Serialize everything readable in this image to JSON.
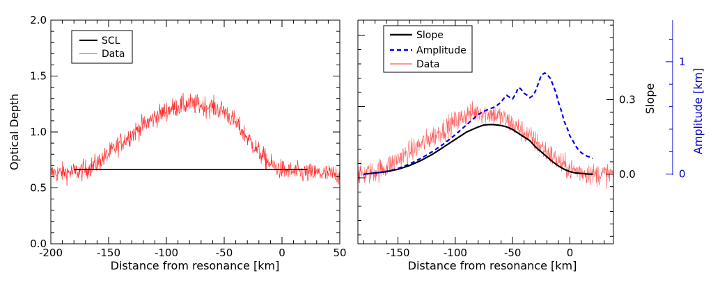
{
  "chart_data": [
    {
      "type": "line",
      "xlabel": "Distance from resonance [km]",
      "ylabel": "Optical Depth",
      "xlim": [
        -200,
        50
      ],
      "ylim": [
        0,
        2.0
      ],
      "xticks": [
        -200,
        -150,
        -100,
        -50,
        0,
        50
      ],
      "xtick_labels": [
        "-200",
        "-150",
        "-100",
        "-50",
        "0",
        "50"
      ],
      "yticks": [
        0,
        0.5,
        1.0,
        1.5,
        2.0
      ],
      "ytick_labels": [
        "0.0",
        "0.5",
        "1.0",
        "1.5",
        "2.0"
      ],
      "legend_position": "top-left",
      "series": [
        {
          "name": "SCL",
          "color": "#000000",
          "x": [
            -180,
            22
          ],
          "y": [
            0.665,
            0.665
          ]
        },
        {
          "name": "Data",
          "color": "#ff2a2a",
          "noisy": true,
          "noise_amplitude": 0.09,
          "x": [
            -200,
            -180,
            -170,
            -160,
            -150,
            -140,
            -130,
            -120,
            -110,
            -100,
            -90,
            -80,
            -70,
            -60,
            -50,
            -40,
            -30,
            -20,
            -10,
            0,
            10,
            20,
            30,
            40,
            50
          ],
          "y": [
            0.63,
            0.64,
            0.66,
            0.72,
            0.8,
            0.9,
            0.98,
            1.06,
            1.13,
            1.19,
            1.23,
            1.25,
            1.24,
            1.22,
            1.19,
            1.08,
            0.95,
            0.82,
            0.71,
            0.66,
            0.64,
            0.63,
            0.63,
            0.62,
            0.62
          ]
        }
      ]
    },
    {
      "type": "line",
      "xlabel": "Distance from resonance [km]",
      "ylabel": "Slope",
      "ylabel_right": "Amplitude [km]",
      "ylabel_right_color": "#0000cc",
      "xlim": [
        -185,
        38
      ],
      "xticks": [
        -150,
        -100,
        -50,
        0
      ],
      "xtick_labels": [
        "-150",
        "-100",
        "-50",
        "0"
      ],
      "slope_ylim": [
        -0.28,
        0.62
      ],
      "slope_ticks": [
        0.0,
        0.3
      ],
      "slope_tick_labels": [
        "0.0",
        "0.3"
      ],
      "amplitude_ylim": [
        -0.62,
        1.37
      ],
      "amplitude_ticks": [
        0,
        1
      ],
      "amplitude_tick_labels": [
        "0",
        "1"
      ],
      "legend_position": "top-left",
      "series": [
        {
          "name": "Slope",
          "color": "#000000",
          "axis": "slope",
          "x": [
            -180,
            -170,
            -160,
            -150,
            -140,
            -130,
            -120,
            -110,
            -100,
            -90,
            -80,
            -75,
            -70,
            -65,
            -60,
            -55,
            -50,
            -45,
            -40,
            -35,
            -30,
            -25,
            -20,
            -15,
            -10,
            -5,
            0,
            5,
            10,
            15,
            20
          ],
          "y": [
            0.0,
            0.005,
            0.01,
            0.02,
            0.035,
            0.055,
            0.08,
            0.11,
            0.14,
            0.17,
            0.19,
            0.198,
            0.2,
            0.199,
            0.196,
            0.19,
            0.18,
            0.165,
            0.15,
            0.135,
            0.11,
            0.09,
            0.07,
            0.05,
            0.033,
            0.02,
            0.01,
            0.005,
            0.003,
            0.001,
            0.0
          ]
        },
        {
          "name": "Amplitude",
          "color": "#0000dd",
          "axis": "amplitude",
          "x": [
            -180,
            -170,
            -160,
            -150,
            -140,
            -130,
            -120,
            -110,
            -100,
            -90,
            -80,
            -75,
            -70,
            -65,
            -60,
            -58,
            -55,
            -52,
            -50,
            -47,
            -45,
            -43,
            -40,
            -37,
            -35,
            -32,
            -30,
            -27,
            -25,
            -22,
            -20,
            -17,
            -15,
            -12,
            -10,
            -7,
            -5,
            -2,
            0,
            3,
            5,
            8,
            10,
            13,
            15,
            18,
            20
          ],
          "y": [
            0.0,
            0.01,
            0.025,
            0.05,
            0.09,
            0.14,
            0.2,
            0.27,
            0.35,
            0.44,
            0.53,
            0.56,
            0.58,
            0.6,
            0.64,
            0.67,
            0.7,
            0.68,
            0.67,
            0.72,
            0.77,
            0.76,
            0.72,
            0.7,
            0.68,
            0.7,
            0.74,
            0.82,
            0.88,
            0.9,
            0.89,
            0.85,
            0.8,
            0.72,
            0.64,
            0.55,
            0.47,
            0.4,
            0.34,
            0.29,
            0.25,
            0.21,
            0.19,
            0.17,
            0.16,
            0.15,
            0.14
          ]
        },
        {
          "name": "Data",
          "color": "#ff3030",
          "axis": "slope",
          "noisy": true,
          "noise_amplitude": 0.045,
          "x": [
            -185,
            -180,
            -170,
            -160,
            -150,
            -140,
            -130,
            -120,
            -110,
            -100,
            -90,
            -80,
            -70,
            -60,
            -50,
            -40,
            -30,
            -20,
            -10,
            0,
            10,
            20,
            30,
            38
          ],
          "y": [
            0.0,
            0.0,
            0.01,
            0.03,
            0.06,
            0.09,
            0.12,
            0.15,
            0.18,
            0.21,
            0.24,
            0.25,
            0.245,
            0.23,
            0.2,
            0.17,
            0.13,
            0.09,
            0.05,
            0.02,
            0.01,
            0.0,
            0.0,
            0.0
          ]
        }
      ]
    }
  ]
}
